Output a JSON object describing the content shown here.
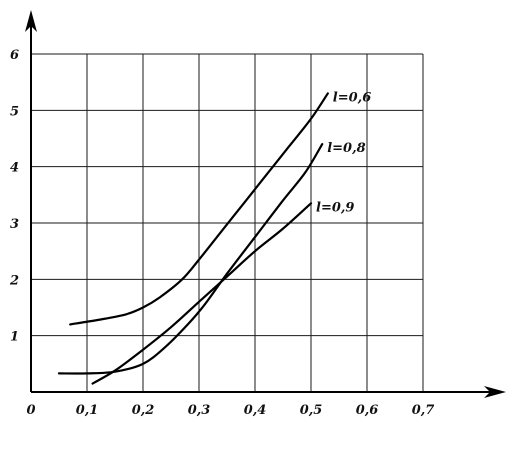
{
  "chart_data": {
    "type": "line",
    "title": "",
    "xlabel": "",
    "ylabel": "",
    "xlim": [
      0,
      0.7
    ],
    "ylim": [
      0,
      6
    ],
    "grid": true,
    "x_ticks": [
      {
        "value": 0,
        "label": "0"
      },
      {
        "value": 0.1,
        "label": "0,1"
      },
      {
        "value": 0.2,
        "label": "0,2"
      },
      {
        "value": 0.3,
        "label": "0,3"
      },
      {
        "value": 0.4,
        "label": "0,4"
      },
      {
        "value": 0.5,
        "label": "0,5"
      },
      {
        "value": 0.6,
        "label": "0,6"
      },
      {
        "value": 0.7,
        "label": "0,7"
      }
    ],
    "y_ticks": [
      {
        "value": 1,
        "label": "1"
      },
      {
        "value": 2,
        "label": "2"
      },
      {
        "value": 3,
        "label": "3"
      },
      {
        "value": 4,
        "label": "4"
      },
      {
        "value": 5,
        "label": "5"
      },
      {
        "value": 6,
        "label": "6"
      }
    ],
    "series": [
      {
        "name": "l=0,6",
        "x": [
          0.07,
          0.12,
          0.17,
          0.2,
          0.23,
          0.27,
          0.3,
          0.34,
          0.38,
          0.42,
          0.46,
          0.5,
          0.53
        ],
        "y": [
          1.2,
          1.28,
          1.38,
          1.5,
          1.68,
          2.0,
          2.35,
          2.85,
          3.35,
          3.85,
          4.35,
          4.85,
          5.3
        ]
      },
      {
        "name": "l=0,8",
        "x": [
          0.05,
          0.1,
          0.15,
          0.2,
          0.24,
          0.28,
          0.31,
          0.35,
          0.4,
          0.45,
          0.49,
          0.52
        ],
        "y": [
          0.33,
          0.33,
          0.36,
          0.5,
          0.8,
          1.2,
          1.55,
          2.1,
          2.75,
          3.4,
          3.9,
          4.4
        ]
      },
      {
        "name": "l=0,9",
        "x": [
          0.11,
          0.15,
          0.2,
          0.25,
          0.3,
          0.35,
          0.4,
          0.45,
          0.5
        ],
        "y": [
          0.15,
          0.38,
          0.75,
          1.15,
          1.6,
          2.05,
          2.5,
          2.9,
          3.35
        ]
      }
    ]
  }
}
